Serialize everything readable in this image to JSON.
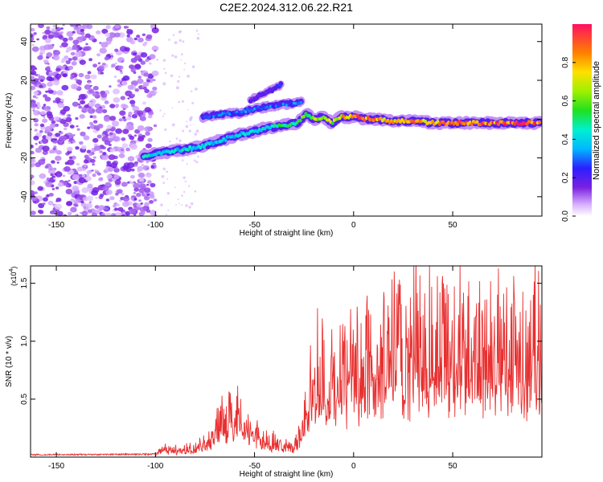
{
  "title": "C2E2.2024.312.06.22.R21",
  "colors": {
    "snr_line": "#e83030",
    "frame": "#000000"
  },
  "chart_data": [
    {
      "type": "heatmap",
      "xlabel": "Height of straight line (km)",
      "ylabel": "Frequency (Hz)",
      "xlim": [
        -163,
        95
      ],
      "ylim": [
        -50,
        49
      ],
      "xticks": [
        -150,
        -100,
        -50,
        0,
        50
      ],
      "yticks": [
        -40,
        -20,
        0,
        20,
        40
      ],
      "colorbar": {
        "label": "Normalized spectral amplitude",
        "range": [
          0,
          1
        ],
        "ticks": [
          0.0,
          0.2,
          0.4,
          0.6,
          0.8
        ]
      },
      "noise_region": {
        "x": [
          -163,
          -100
        ],
        "y": [
          -50,
          49
        ]
      },
      "main_ridge": [
        {
          "x": -106,
          "y": -19,
          "a": 0.45
        },
        {
          "x": -100,
          "y": -18,
          "a": 0.4
        },
        {
          "x": -94,
          "y": -17,
          "a": 0.42
        },
        {
          "x": -88,
          "y": -16,
          "a": 0.4
        },
        {
          "x": -82,
          "y": -15,
          "a": 0.44
        },
        {
          "x": -76,
          "y": -14,
          "a": 0.4
        },
        {
          "x": -70,
          "y": -12,
          "a": 0.38
        },
        {
          "x": -64,
          "y": -10,
          "a": 0.38
        },
        {
          "x": -58,
          "y": -8,
          "a": 0.4
        },
        {
          "x": -52,
          "y": -7,
          "a": 0.4
        },
        {
          "x": -46,
          "y": -5,
          "a": 0.42
        },
        {
          "x": -40,
          "y": -4,
          "a": 0.45
        },
        {
          "x": -34,
          "y": -3,
          "a": 0.5
        },
        {
          "x": -28,
          "y": -2,
          "a": 0.55
        },
        {
          "x": -24,
          "y": 3,
          "a": 0.55
        },
        {
          "x": -20,
          "y": 0,
          "a": 0.6
        },
        {
          "x": -15,
          "y": 1,
          "a": 0.7
        },
        {
          "x": -11,
          "y": -2,
          "a": 0.65
        },
        {
          "x": -7,
          "y": 1,
          "a": 0.75
        },
        {
          "x": -2,
          "y": 1,
          "a": 0.85
        },
        {
          "x": 2,
          "y": 1,
          "a": 0.88
        },
        {
          "x": 6,
          "y": 0,
          "a": 0.85
        },
        {
          "x": 12,
          "y": 0,
          "a": 0.82
        },
        {
          "x": 18,
          "y": -1,
          "a": 0.8
        },
        {
          "x": 25,
          "y": -1,
          "a": 0.8
        },
        {
          "x": 32,
          "y": -1,
          "a": 0.82
        },
        {
          "x": 40,
          "y": -2,
          "a": 0.85
        },
        {
          "x": 48,
          "y": -2,
          "a": 0.85
        },
        {
          "x": 56,
          "y": -2,
          "a": 0.88
        },
        {
          "x": 64,
          "y": -2,
          "a": 0.9
        },
        {
          "x": 72,
          "y": -2,
          "a": 0.9
        },
        {
          "x": 80,
          "y": -2,
          "a": 0.9
        },
        {
          "x": 88,
          "y": -2,
          "a": 0.92
        },
        {
          "x": 94,
          "y": -2,
          "a": 0.9
        }
      ],
      "upper_ridge": [
        {
          "x": -76,
          "y": 1,
          "a": 0.3
        },
        {
          "x": -70,
          "y": 2,
          "a": 0.32
        },
        {
          "x": -64,
          "y": 3,
          "a": 0.3
        },
        {
          "x": -58,
          "y": 3,
          "a": 0.3
        },
        {
          "x": -52,
          "y": 5,
          "a": 0.32
        },
        {
          "x": -46,
          "y": 6,
          "a": 0.3
        },
        {
          "x": -40,
          "y": 7,
          "a": 0.3
        },
        {
          "x": -32,
          "y": 8,
          "a": 0.32
        },
        {
          "x": -26,
          "y": 9,
          "a": 0.32
        }
      ],
      "faint_ridge": [
        {
          "x": -52,
          "y": 10,
          "a": 0.15
        },
        {
          "x": -45,
          "y": 13,
          "a": 0.18
        },
        {
          "x": -40,
          "y": 16,
          "a": 0.22
        },
        {
          "x": -36,
          "y": 18,
          "a": 0.3
        }
      ]
    },
    {
      "type": "line",
      "xlabel": "Height of straight line (km)",
      "ylabel": "SNR (10 * v/v)",
      "yscale_label": "(x10",
      "yscale_exp": "4",
      "yscale_close": ")",
      "xlim": [
        -163,
        95
      ],
      "ylim": [
        0,
        16500
      ],
      "xticks": [
        -150,
        -100,
        -50,
        0,
        50
      ],
      "yticks": [
        5000,
        10000,
        15000
      ],
      "ytick_labels": [
        "0.5",
        "1.0",
        "1.5"
      ],
      "series": [
        {
          "envelope": [
            {
              "x": -163,
              "y": 200
            },
            {
              "x": -100,
              "y": 250
            },
            {
              "x": -97,
              "y": 800
            },
            {
              "x": -90,
              "y": 700
            },
            {
              "x": -80,
              "y": 900
            },
            {
              "x": -74,
              "y": 1500
            },
            {
              "x": -68,
              "y": 3000
            },
            {
              "x": -62,
              "y": 4000
            },
            {
              "x": -58,
              "y": 4200
            },
            {
              "x": -54,
              "y": 2800
            },
            {
              "x": -48,
              "y": 2000
            },
            {
              "x": -42,
              "y": 1600
            },
            {
              "x": -36,
              "y": 1200
            },
            {
              "x": -30,
              "y": 1000
            },
            {
              "x": -26,
              "y": 2500
            },
            {
              "x": -23,
              "y": 6000
            },
            {
              "x": -20,
              "y": 8500
            },
            {
              "x": -15,
              "y": 7500
            },
            {
              "x": -10,
              "y": 7000
            },
            {
              "x": -5,
              "y": 7800
            },
            {
              "x": 0,
              "y": 8500
            },
            {
              "x": 5,
              "y": 9200
            },
            {
              "x": 10,
              "y": 9600
            },
            {
              "x": 15,
              "y": 10200
            },
            {
              "x": 20,
              "y": 10700
            },
            {
              "x": 30,
              "y": 11000
            },
            {
              "x": 40,
              "y": 11500
            },
            {
              "x": 50,
              "y": 11300
            },
            {
              "x": 60,
              "y": 11000
            },
            {
              "x": 70,
              "y": 10800
            },
            {
              "x": 80,
              "y": 10900
            },
            {
              "x": 90,
              "y": 10900
            },
            {
              "x": 95,
              "y": 10900
            }
          ]
        }
      ]
    }
  ]
}
